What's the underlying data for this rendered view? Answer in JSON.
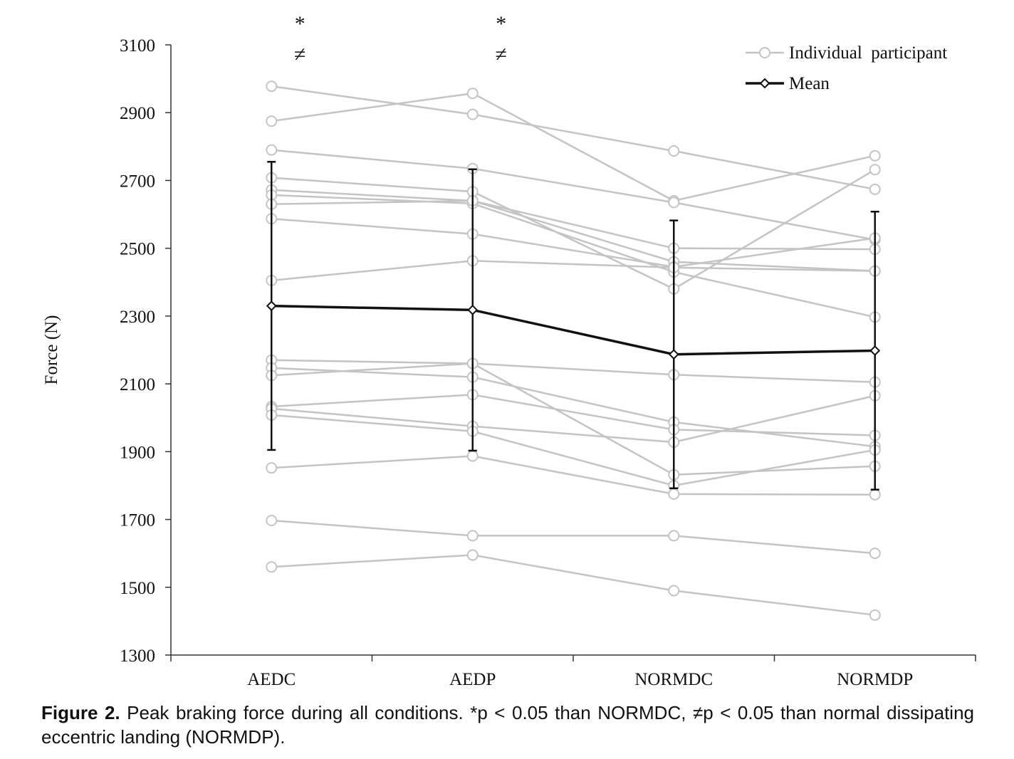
{
  "chart_data": {
    "type": "line",
    "ylabel": "Force (N)",
    "xlabel": "",
    "ylim": [
      1300,
      3100
    ],
    "yticks": [
      1300,
      1500,
      1700,
      1900,
      2100,
      2300,
      2500,
      2700,
      2900,
      3100
    ],
    "categories": [
      "AEDC",
      "AEDP",
      "NORMDC",
      "NORMDP"
    ],
    "legend": {
      "position": "top-right",
      "individual_label": "Individual  participant",
      "mean_label": "Mean"
    },
    "significance": [
      {
        "category": "AEDC",
        "marks": [
          "*",
          "≠"
        ]
      },
      {
        "category": "AEDP",
        "marks": [
          "*",
          "≠"
        ]
      }
    ],
    "individuals": [
      {
        "values": [
          2978,
          2895,
          2787,
          2674
        ]
      },
      {
        "values": [
          2875,
          2957,
          2640,
          2773
        ]
      },
      {
        "values": [
          2790,
          2735,
          2635,
          2525
        ]
      },
      {
        "values": [
          2708,
          2667,
          2380,
          2732
        ]
      },
      {
        "values": [
          2672,
          2640,
          2500,
          2497
        ]
      },
      {
        "values": [
          2657,
          2632,
          2430,
          2297
        ]
      },
      {
        "values": [
          2630,
          2640,
          2460,
          2433
        ]
      },
      {
        "values": [
          2587,
          2542,
          2445,
          2530
        ]
      },
      {
        "values": [
          2405,
          2463,
          2443,
          2433
        ]
      },
      {
        "values": [
          2170,
          2160,
          2127,
          2105
        ]
      },
      {
        "values": [
          2147,
          2120,
          1987,
          1915
        ]
      },
      {
        "values": [
          2125,
          2160,
          1832,
          1857
        ]
      },
      {
        "values": [
          2033,
          2068,
          1965,
          1948
        ]
      },
      {
        "values": [
          2027,
          1975,
          1928,
          2065
        ]
      },
      {
        "values": [
          2008,
          1960,
          1800,
          1905
        ]
      },
      {
        "values": [
          1852,
          1887,
          1775,
          1773
        ]
      },
      {
        "values": [
          1697,
          1652,
          1652,
          1600
        ]
      },
      {
        "values": [
          1560,
          1595,
          1490,
          1418
        ]
      }
    ],
    "mean": {
      "values": [
        2330,
        2318,
        2187,
        2198
      ],
      "sd": [
        425,
        415,
        395,
        410
      ]
    }
  },
  "caption": {
    "label": "Figure 2.",
    "text": " Peak braking force during all conditions. *p < 0.05 than NORMDC, ≠p < 0.05 than normal dissipating eccentric landing (NORMDP)."
  }
}
